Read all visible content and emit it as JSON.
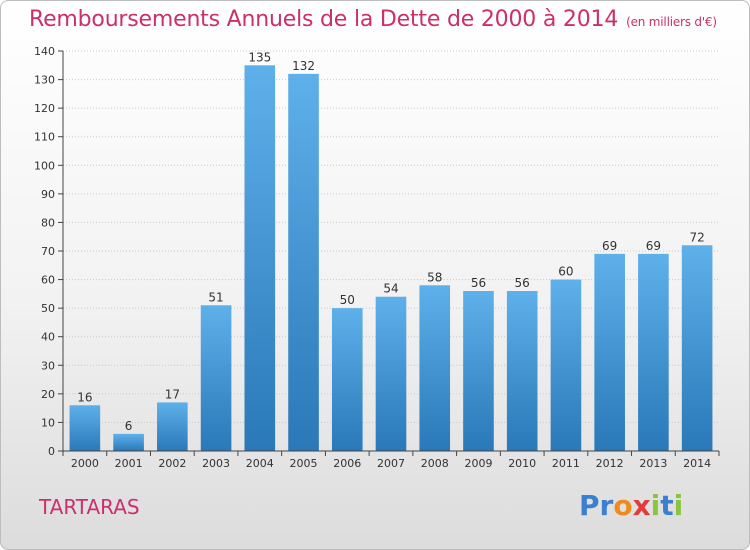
{
  "header": {
    "title": "Remboursements Annuels de la Dette de 2000 à 2014",
    "unit": "(en milliers d'€)"
  },
  "footer": {
    "place": "TARTARAS",
    "logo": "Proxiti",
    "logo_letters": [
      {
        "ch": "P",
        "color": "#3a7fd0"
      },
      {
        "ch": "r",
        "color": "#3a7fd0"
      },
      {
        "ch": "o",
        "color": "#f08a1c"
      },
      {
        "ch": "x",
        "color": "#e23b3b"
      },
      {
        "ch": "i",
        "color": "#8bc53f"
      },
      {
        "ch": "t",
        "color": "#3a7fd0"
      },
      {
        "ch": "i",
        "color": "#8bc53f"
      }
    ]
  },
  "colors": {
    "accent": "#cc2f6a",
    "bar_top": "#5eb0ea",
    "bar_bottom": "#2a78b8"
  },
  "chart_data": {
    "type": "bar",
    "title": "Remboursements Annuels de la Dette de 2000 à 2014",
    "subtitle": "(en milliers d'€)",
    "categories": [
      "2000",
      "2001",
      "2002",
      "2003",
      "2004",
      "2005",
      "2006",
      "2007",
      "2008",
      "2009",
      "2010",
      "2011",
      "2012",
      "2013",
      "2014"
    ],
    "values": [
      16,
      6,
      17,
      51,
      135,
      132,
      50,
      54,
      58,
      56,
      56,
      60,
      69,
      69,
      72
    ],
    "ylim": [
      0,
      140
    ],
    "yticks": [
      0,
      10,
      20,
      30,
      40,
      50,
      60,
      70,
      80,
      90,
      100,
      110,
      120,
      130,
      140
    ],
    "grid": true,
    "data_labels": true,
    "xlabel": "",
    "ylabel": ""
  }
}
